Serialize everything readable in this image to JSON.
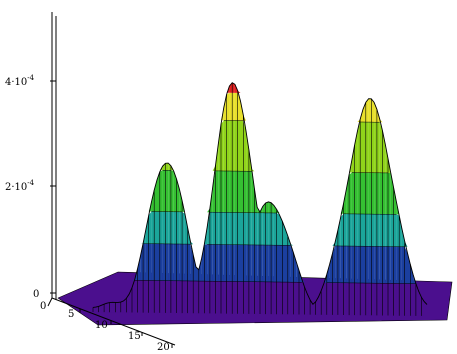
{
  "chart_data": {
    "type": "surface3d",
    "z_axis": {
      "ticks": [
        {
          "value": 0,
          "label": "0"
        },
        {
          "value": 0.0002,
          "mantissa": "2·10",
          "exp": "-4"
        },
        {
          "value": 0.0004,
          "mantissa": "4·10",
          "exp": "-4"
        }
      ],
      "range": [
        0,
        0.0005
      ]
    },
    "x_axis": {
      "ticks": [
        "0",
        "5",
        "10",
        "15",
        "20"
      ],
      "range": [
        0,
        20
      ]
    },
    "colormap_bands": [
      {
        "z_min": 0,
        "z_max": 7e-05,
        "color": "#4b0f8e"
      },
      {
        "z_min": 7e-05,
        "z_max": 0.00015,
        "color": "#1b3f9f"
      },
      {
        "z_min": 0.00015,
        "z_max": 0.00022,
        "color": "#1ba59a"
      },
      {
        "z_min": 0.00022,
        "z_max": 0.00031,
        "color": "#35c032"
      },
      {
        "z_min": 0.00031,
        "z_max": 0.00042,
        "color": "#90d41a"
      },
      {
        "z_min": 0.00042,
        "z_max": 0.00048,
        "color": "#e8e02c"
      },
      {
        "z_min": 0.00048,
        "z_max": 0.00052,
        "color": "#e02020"
      }
    ],
    "peaks": [
      {
        "name": "left",
        "position": 0.22,
        "height": 0.00032
      },
      {
        "name": "tall",
        "position": 0.42,
        "height": 0.0005
      },
      {
        "name": "middle",
        "position": 0.53,
        "height": 0.00023
      },
      {
        "name": "right",
        "position": 0.83,
        "height": 0.00045
      }
    ],
    "grid": false,
    "legend": "none"
  }
}
